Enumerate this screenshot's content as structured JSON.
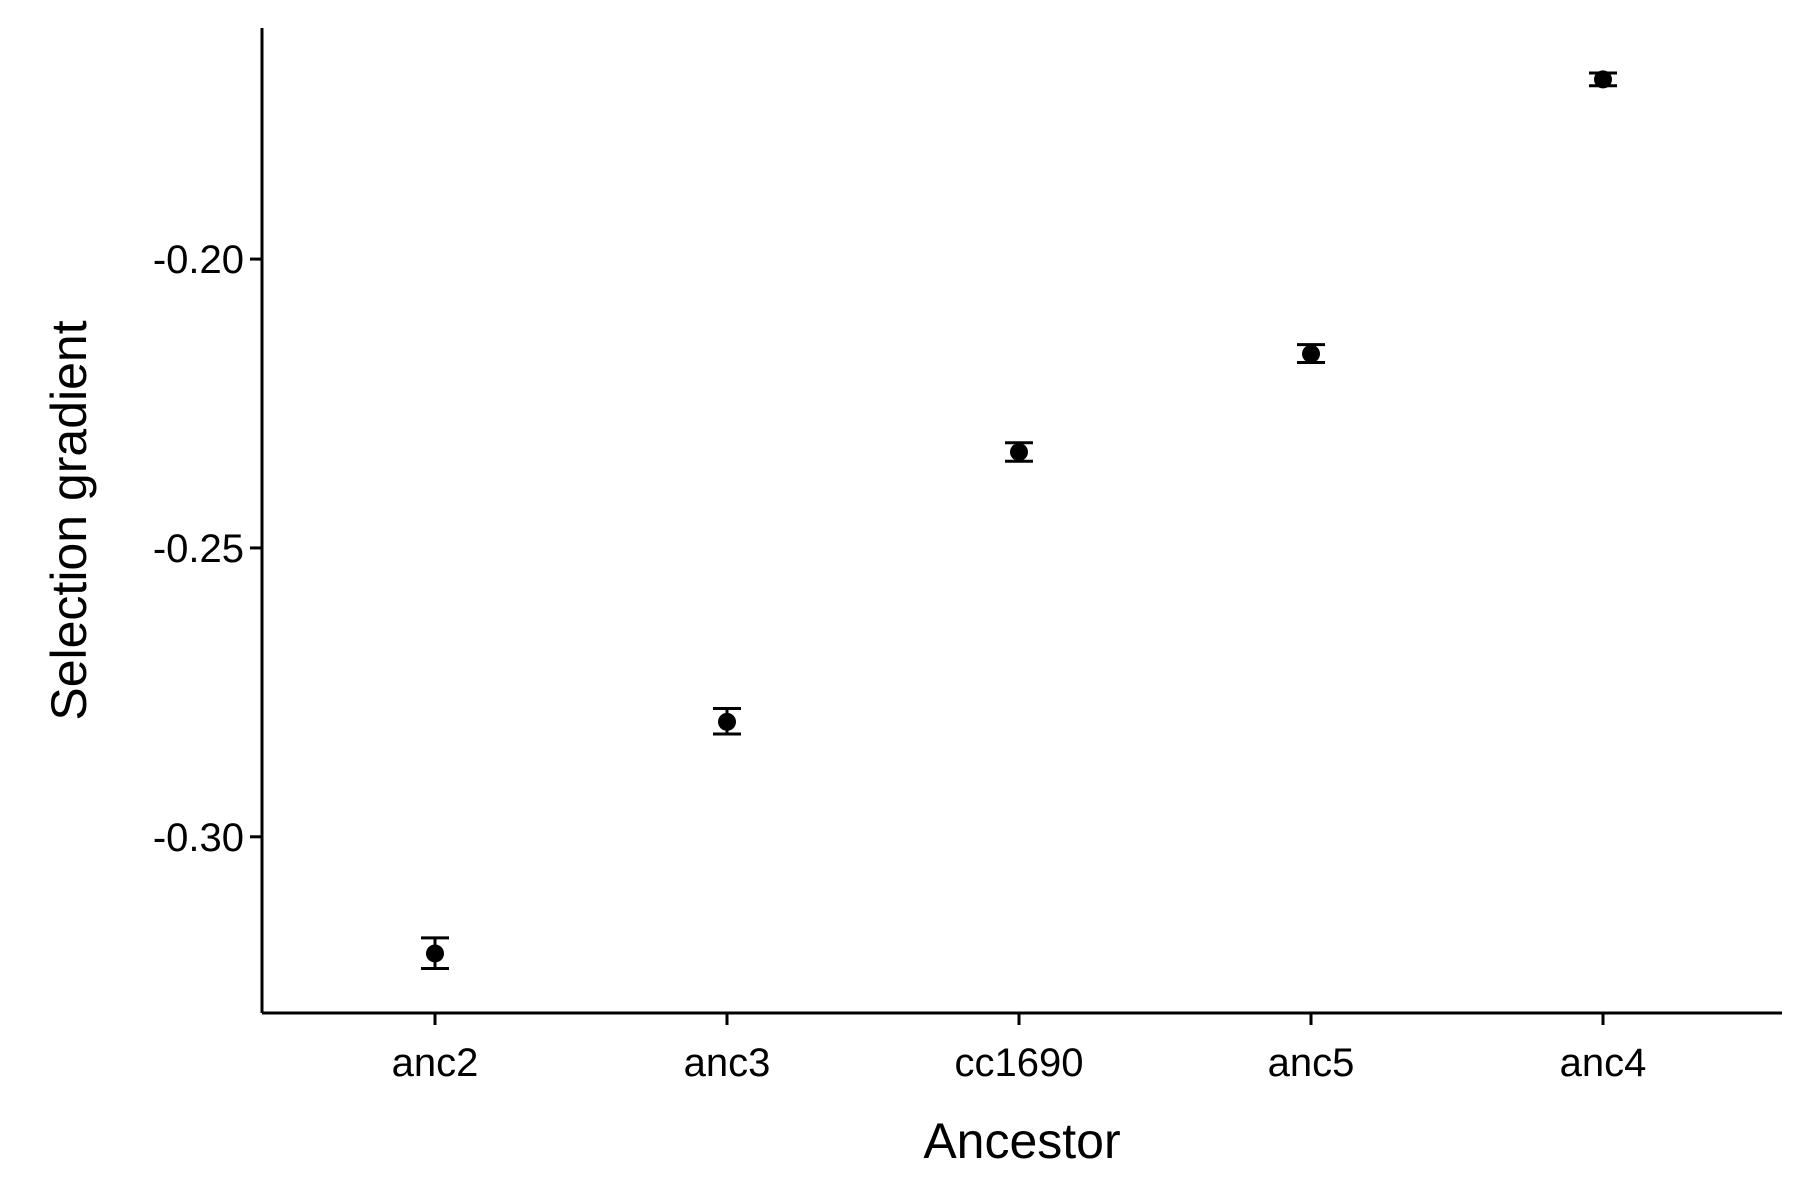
{
  "chart_data": {
    "type": "scatter",
    "title": "",
    "xlabel": "Ancestor",
    "ylabel": "Selection gradient",
    "categories": [
      "anc2",
      "anc3",
      "cc1690",
      "anc5",
      "anc4"
    ],
    "values": [
      -0.3202,
      -0.2801,
      -0.2334,
      -0.2164,
      -0.1689
    ],
    "error_low": [
      -0.3228,
      -0.2822,
      -0.235,
      -0.2179,
      -0.17
    ],
    "error_high": [
      -0.3175,
      -0.2778,
      -0.2318,
      -0.2148,
      -0.1678
    ],
    "ylim": [
      -0.3305,
      -0.16
    ],
    "yticks": [
      -0.3,
      -0.25,
      -0.2
    ],
    "ytick_labels": [
      "-0.30",
      "-0.25",
      "-0.20"
    ],
    "grid": false,
    "legend": "none",
    "colors": {
      "point": "#000000",
      "axis": "#000000"
    }
  }
}
